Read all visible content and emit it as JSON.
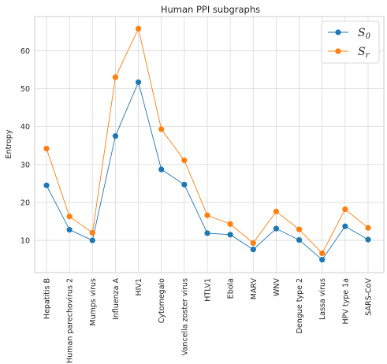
{
  "chart_data": {
    "type": "line",
    "title": "Human PPI subgraphs",
    "xlabel": "",
    "ylabel": "Entropy",
    "categories": [
      "Hepatitis B",
      "Human parechovirus 2",
      "Mumps virus",
      "Influenza A",
      "HIV1",
      "Cytomegalo",
      "Vancella zoster virus",
      "HTLV1",
      "Ebola",
      "MARV",
      "WNV",
      "Dengue type 2",
      "Lassa virus",
      "HPV type 1a",
      "SARS-CoV"
    ],
    "yticks": [
      10,
      20,
      30,
      40,
      50,
      60
    ],
    "ylim": [
      1.5,
      69
    ],
    "grid": true,
    "legend_position": "top-right",
    "series": [
      {
        "name": "S",
        "subscript": "0",
        "color": "#1f77b4",
        "values": [
          24.5,
          12.8,
          10.0,
          37.5,
          51.7,
          28.7,
          24.7,
          11.9,
          11.5,
          7.6,
          13.1,
          10.1,
          4.9,
          13.7,
          10.2
        ]
      },
      {
        "name": "S",
        "subscript": "r",
        "color": "#ff7f0e",
        "values": [
          34.2,
          16.3,
          12.0,
          53.0,
          65.8,
          39.3,
          31.1,
          16.6,
          14.3,
          9.3,
          17.6,
          12.9,
          6.6,
          18.2,
          13.3
        ]
      }
    ]
  }
}
